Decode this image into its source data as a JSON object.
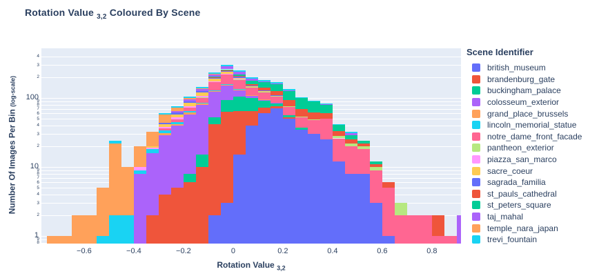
{
  "title": {
    "prefix": "Rotation Value",
    "subscript": "3,2",
    "suffix": " Coloured By Scene"
  },
  "axes": {
    "x": {
      "label": "Rotation Value ",
      "subscript": "3,2",
      "ticks": [
        {
          "v": -0.6,
          "label": "−0.6"
        },
        {
          "v": -0.4,
          "label": "−0.4"
        },
        {
          "v": -0.2,
          "label": "−0.2"
        },
        {
          "v": 0,
          "label": "0"
        },
        {
          "v": 0.2,
          "label": "0.2"
        },
        {
          "v": 0.4,
          "label": "0.4"
        },
        {
          "v": 0.6,
          "label": "0.6"
        },
        {
          "v": 0.8,
          "label": "0.8"
        }
      ]
    },
    "y": {
      "label": "Number Of Images Per Bin ",
      "note": "(log-scale)",
      "major_ticks": [
        {
          "v": 1,
          "label": "1"
        },
        {
          "v": 10,
          "label": "10"
        },
        {
          "v": 100,
          "label": "100"
        }
      ],
      "minor_tick_values": [
        0.8,
        0.9,
        2,
        3,
        4,
        5,
        6,
        7,
        8,
        9,
        20,
        30,
        40,
        50,
        60,
        70,
        80,
        90,
        200,
        300,
        400
      ]
    }
  },
  "legend": {
    "title": "Scene Identifier"
  },
  "colors": {
    "text": "#2a3f5f",
    "plot_bg": "#e5ecf6",
    "grid": "#ffffff"
  },
  "chart_data": {
    "type": "bar",
    "subtype": "stacked-histogram",
    "title": "Rotation Value 3,2 Coloured By Scene",
    "xlabel": "Rotation Value 3,2",
    "ylabel": "Number Of Images Per Bin (log-scale)",
    "legend_title": "Scene Identifier",
    "legend_position": "right",
    "grid": "y-only",
    "y_scale": "log",
    "xlim": [
      -0.772,
      0.917
    ],
    "ylim_log10": [
      -0.11,
      2.72
    ],
    "bin_start": -0.75,
    "bin_width": 0.05,
    "n_bins": 34,
    "series": [
      {
        "name": "british_museum",
        "color": "#636EFA",
        "counts": [
          0,
          0,
          0,
          0,
          0,
          0,
          0,
          0,
          0,
          0,
          0,
          0,
          0,
          2,
          3,
          15,
          40,
          60,
          70,
          50,
          35,
          30,
          25,
          12,
          8,
          8,
          3,
          1,
          0,
          0,
          0,
          0,
          0,
          0
        ]
      },
      {
        "name": "brandenburg_gate",
        "color": "#EF553B",
        "counts": [
          0,
          0,
          0,
          0,
          0,
          0,
          0,
          0,
          2,
          4,
          5,
          6,
          10,
          40,
          60,
          50,
          25,
          12,
          5,
          2,
          0,
          0,
          0,
          0,
          0,
          0,
          0,
          0,
          0,
          0,
          0,
          0,
          0,
          0
        ]
      },
      {
        "name": "buckingham_palace",
        "color": "#00CC96",
        "counts": [
          0,
          0,
          0,
          0,
          0,
          0,
          0,
          0,
          0,
          0,
          0,
          2,
          5,
          10,
          30,
          40,
          35,
          20,
          10,
          4,
          2,
          0,
          0,
          0,
          0,
          0,
          0,
          0,
          0,
          0,
          0,
          0,
          0,
          0
        ]
      },
      {
        "name": "colosseum_exterior",
        "color": "#AB63FA",
        "counts": [
          0,
          0,
          0,
          0,
          0,
          0,
          0,
          8,
          14,
          25,
          35,
          50,
          65,
          70,
          60,
          25,
          8,
          3,
          1,
          0,
          0,
          0,
          0,
          0,
          0,
          0,
          0,
          0,
          0,
          0,
          0,
          0,
          0,
          0
        ]
      },
      {
        "name": "grand_place_brussels",
        "color": "#FFA15A",
        "counts": [
          0,
          0,
          0,
          0,
          0,
          0,
          0,
          0,
          0,
          2,
          2,
          3,
          3,
          4,
          4,
          3,
          2,
          1,
          0,
          0,
          0,
          0,
          0,
          0,
          0,
          0,
          0,
          0,
          0,
          0,
          0,
          0,
          0,
          0
        ]
      },
      {
        "name": "lincoln_memorial_statue",
        "color": "#19D3F3",
        "counts": [
          0,
          0,
          0,
          0,
          1,
          2,
          2,
          1,
          2,
          3,
          3,
          3,
          3,
          2,
          2,
          1,
          0,
          0,
          0,
          0,
          0,
          0,
          0,
          0,
          0,
          0,
          0,
          0,
          0,
          0,
          0,
          0,
          0,
          0
        ]
      },
      {
        "name": "notre_dame_front_facade",
        "color": "#FF6692",
        "counts": [
          0,
          0,
          0,
          0,
          0,
          0,
          0,
          0,
          0,
          2,
          4,
          8,
          15,
          40,
          60,
          50,
          30,
          25,
          20,
          18,
          15,
          18,
          25,
          14,
          12,
          10,
          6,
          4,
          2,
          2,
          2,
          1,
          1,
          0
        ]
      },
      {
        "name": "pantheon_exterior",
        "color": "#B6E880",
        "counts": [
          0,
          0,
          0,
          0,
          0,
          0,
          0,
          0,
          0,
          0,
          0,
          0,
          2,
          4,
          5,
          4,
          3,
          2,
          2,
          1,
          2,
          1,
          0,
          2,
          2,
          2,
          1,
          0,
          1,
          0,
          0,
          0,
          0,
          0
        ]
      },
      {
        "name": "piazza_san_marco",
        "color": "#FF97FF",
        "counts": [
          0,
          0,
          0,
          0,
          0,
          0,
          0,
          1,
          1,
          2,
          3,
          4,
          4,
          3,
          2,
          1,
          0,
          0,
          0,
          0,
          0,
          0,
          0,
          0,
          0,
          0,
          0,
          0,
          0,
          0,
          0,
          0,
          0,
          0
        ]
      },
      {
        "name": "sacre_coeur",
        "color": "#FECB52",
        "counts": [
          0,
          0,
          0,
          0,
          0,
          0,
          0,
          0,
          1,
          4,
          6,
          10,
          14,
          16,
          16,
          8,
          4,
          2,
          0,
          0,
          0,
          0,
          0,
          0,
          0,
          0,
          0,
          0,
          0,
          0,
          0,
          0,
          0,
          0
        ]
      },
      {
        "name": "sagrada_familia",
        "color": "#636EFA",
        "counts": [
          0,
          0,
          0,
          0,
          0,
          0,
          0,
          0,
          0,
          2,
          3,
          4,
          6,
          8,
          8,
          6,
          4,
          3,
          2,
          0,
          0,
          0,
          0,
          0,
          0,
          0,
          0,
          0,
          0,
          0,
          0,
          0,
          0,
          0
        ]
      },
      {
        "name": "st_pauls_cathedral",
        "color": "#EF553B",
        "counts": [
          0,
          0,
          0,
          0,
          0,
          0,
          0,
          0,
          0,
          0,
          0,
          0,
          0,
          2,
          4,
          6,
          8,
          12,
          15,
          18,
          15,
          12,
          10,
          5,
          3,
          2,
          1,
          1,
          0,
          0,
          0,
          1,
          0,
          0
        ]
      },
      {
        "name": "st_peters_square",
        "color": "#00CC96",
        "counts": [
          0,
          0,
          0,
          0,
          0,
          0,
          0,
          0,
          0,
          0,
          0,
          0,
          0,
          3,
          6,
          12,
          20,
          30,
          35,
          35,
          30,
          28,
          20,
          8,
          4,
          2,
          1,
          0,
          0,
          0,
          0,
          0,
          0,
          0
        ]
      },
      {
        "name": "taj_mahal",
        "color": "#AB63FA",
        "counts": [
          0,
          0,
          0,
          0,
          0,
          0,
          0,
          0,
          0,
          0,
          3,
          6,
          10,
          20,
          30,
          18,
          10,
          5,
          3,
          1,
          0,
          0,
          1,
          0,
          2,
          0,
          0,
          0,
          0,
          0,
          0,
          0,
          0,
          2
        ]
      },
      {
        "name": "temple_nara_japan",
        "color": "#FFA15A",
        "counts": [
          1,
          1,
          2,
          2,
          4,
          20,
          8,
          10,
          12,
          14,
          8,
          4,
          2,
          1,
          0,
          0,
          0,
          0,
          0,
          0,
          0,
          0,
          0,
          0,
          0,
          0,
          0,
          0,
          0,
          0,
          0,
          0,
          0,
          0
        ]
      },
      {
        "name": "trevi_fountain",
        "color": "#19D3F3",
        "counts": [
          0,
          0,
          0,
          0,
          0,
          2,
          0,
          0,
          0,
          2,
          3,
          5,
          6,
          8,
          10,
          12,
          10,
          9,
          7,
          6,
          4,
          3,
          2,
          1,
          1,
          0,
          0,
          0,
          0,
          0,
          0,
          0,
          0,
          0
        ]
      }
    ]
  }
}
